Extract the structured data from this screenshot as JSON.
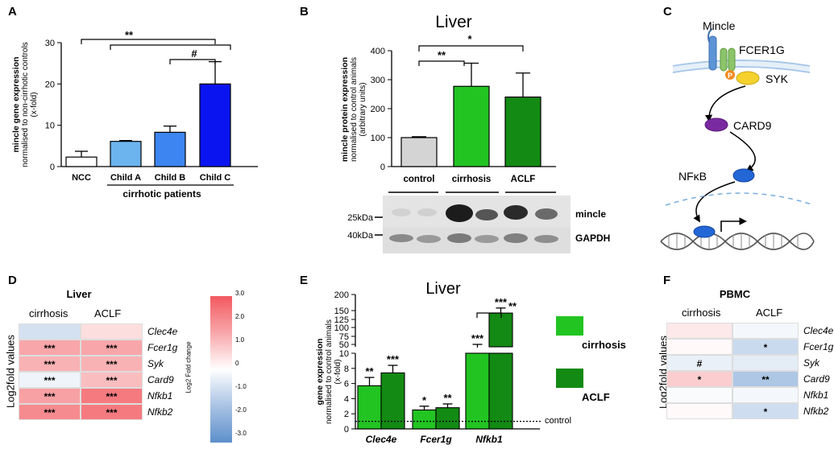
{
  "panel_letters": {
    "A": "A",
    "B": "B",
    "C": "C",
    "D": "D",
    "E": "E",
    "F": "F"
  },
  "panelA": {
    "ylabel_line1": "mincle gene expression",
    "ylabel_line2": "normalised to non-cirrhotic controls",
    "ylabel_line3": "(x-fold)",
    "group_label": "cirrhotic patients",
    "sig_top": "**",
    "sig_bc": "#",
    "chart_data": {
      "type": "bar",
      "categories": [
        "NCC",
        "Child A",
        "Child B",
        "Child C"
      ],
      "values": [
        2.3,
        6.1,
        8.3,
        20.0
      ],
      "errors": [
        1.4,
        0.2,
        1.5,
        5.4
      ],
      "colors": [
        "#ffffff",
        "#6cb4ee",
        "#3d85f0",
        "#0a14f0"
      ],
      "ylim": [
        0,
        30
      ],
      "yticks": [
        "0",
        "10",
        "20",
        "30"
      ]
    }
  },
  "panelB": {
    "title": "Liver",
    "ylabel_line1": "mincle protein expression",
    "ylabel_line2": "normalised to control animals",
    "ylabel_line3": "(arbitrary units)",
    "sig_cirr": "**",
    "sig_aclf": "*",
    "blot": {
      "band1": "25kDa",
      "band2": "40kDa",
      "label1": "mincle",
      "label2": "GAPDH"
    },
    "chart_data": {
      "type": "bar",
      "categories": [
        "control",
        "cirrhosis",
        "ACLF"
      ],
      "values": [
        100,
        277,
        240
      ],
      "errors": [
        3,
        80,
        83
      ],
      "colors": [
        "#d4d4d4",
        "#22c422",
        "#138a13"
      ],
      "ylim": [
        0,
        400
      ],
      "yticks": [
        "0",
        "100",
        "200",
        "300",
        "400"
      ]
    }
  },
  "panelC": {
    "mincle": "Mincle",
    "fcer1g": "FCER1G",
    "p": "P",
    "syk": "SYK",
    "card9": "CARD9",
    "nfkb": "NFκB"
  },
  "panelD": {
    "title": "Liver",
    "col1": "cirrhosis",
    "col2": "ACLF",
    "ylabel": "Log2fold values",
    "scale_label": "Log2 Fold change",
    "scale_ticks": [
      "3.0",
      "2.0",
      "1.0",
      "0",
      "-1.0",
      "-2.0",
      "-3.0"
    ],
    "chart_data": {
      "type": "heatmap",
      "rows": [
        "Clec4e",
        "Fcer1g",
        "Syk",
        "Card9",
        "Nfkb1",
        "Nfkb2"
      ],
      "columns": [
        "cirrhosis",
        "ACLF"
      ],
      "values": [
        [
          -0.8,
          0.6
        ],
        [
          1.6,
          1.6
        ],
        [
          1.4,
          1.4
        ],
        [
          -0.3,
          1.2
        ],
        [
          1.7,
          2.4
        ],
        [
          2.1,
          2.4
        ]
      ],
      "stars": [
        [
          "",
          ""
        ],
        [
          "***",
          "***"
        ],
        [
          "***",
          "***"
        ],
        [
          "***",
          "***"
        ],
        [
          "***",
          "***"
        ],
        [
          "***",
          "***"
        ]
      ]
    }
  },
  "panelE": {
    "title": "Liver",
    "ylabel_line1": "gene expression",
    "ylabel_line2": "normalised to control animals",
    "ylabel_line3": "(x-fold)",
    "control_label": "control",
    "legend": [
      "cirrhosis",
      "ACLF"
    ],
    "sig_nfkb_pair": "**",
    "chart_data": {
      "type": "bar",
      "categories": [
        "Clec4e",
        "Fcer1g",
        "Nfkb1"
      ],
      "series": [
        {
          "name": "cirrhosis",
          "values": [
            5.7,
            2.5,
            40
          ],
          "errors": [
            1.1,
            0.5,
            10
          ],
          "stars": [
            "**",
            "*",
            "***"
          ],
          "color": "#22c422"
        },
        {
          "name": "ACLF",
          "values": [
            7.4,
            2.8,
            143
          ],
          "errors": [
            1.0,
            0.5,
            15
          ],
          "stars": [
            "***",
            "**",
            "***"
          ],
          "color": "#138a13"
        }
      ],
      "yticks_lower": [
        "0",
        "2",
        "4",
        "6",
        "8",
        "10"
      ],
      "yticks_upper": [
        "50",
        "75",
        "100",
        "125",
        "150",
        "200"
      ],
      "control_level": 1
    }
  },
  "panelF": {
    "title": "PBMC",
    "col1": "cirrhosis",
    "col2": "ACLF",
    "ylabel": "Log2fold values",
    "chart_data": {
      "type": "heatmap",
      "rows": [
        "Clec4e",
        "Fcer1g",
        "Syk",
        "Card9",
        "Nfkb1",
        "Nfkb2"
      ],
      "columns": [
        "cirrhosis",
        "ACLF"
      ],
      "values": [
        [
          0.4,
          -0.2
        ],
        [
          0.1,
          -1.0
        ],
        [
          -0.4,
          -0.5
        ],
        [
          0.9,
          -1.5
        ],
        [
          -0.1,
          -0.2
        ],
        [
          0.1,
          -0.9
        ]
      ],
      "stars": [
        [
          "",
          ""
        ],
        [
          "",
          "*"
        ],
        [
          "#",
          ""
        ],
        [
          "*",
          "**"
        ],
        [
          "",
          ""
        ],
        [
          "",
          "*"
        ]
      ]
    }
  }
}
